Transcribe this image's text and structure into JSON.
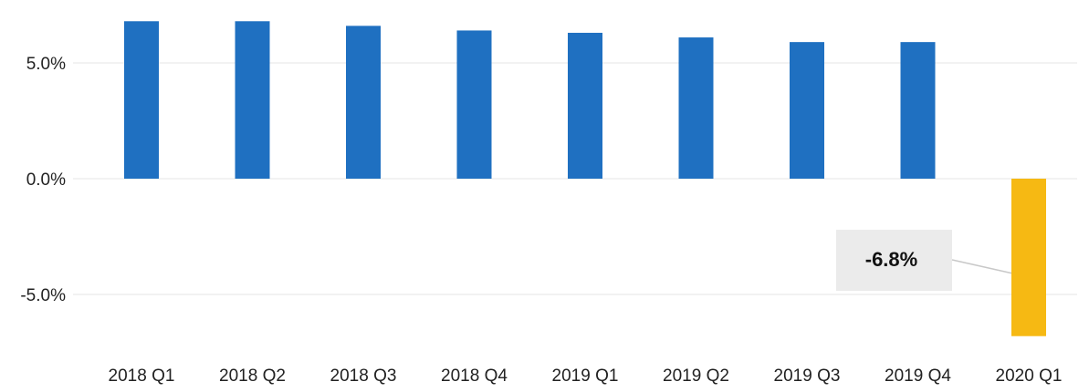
{
  "chart_data": {
    "type": "bar",
    "categories": [
      "2018 Q1",
      "2018 Q2",
      "2018 Q3",
      "2018 Q4",
      "2019 Q1",
      "2019 Q2",
      "2019 Q3",
      "2019 Q4",
      "2020 Q1"
    ],
    "values": [
      6.8,
      6.8,
      6.6,
      6.4,
      6.3,
      6.1,
      5.9,
      5.9,
      -6.8
    ],
    "yticks": [
      {
        "value": 5,
        "label": "5.0%"
      },
      {
        "value": 0,
        "label": "0.0%"
      },
      {
        "value": -5,
        "label": "-5.0%"
      }
    ],
    "ylim": [
      -7.2,
      7.6
    ],
    "grid": true,
    "colors": {
      "positive_bar": "#1f70c1",
      "highlight_bar": "#f6b913",
      "gridline": "#e6e6e6",
      "callout_bg": "#ebebeb"
    },
    "annotation": {
      "category": "2020 Q1",
      "text": "-6.8%"
    }
  }
}
